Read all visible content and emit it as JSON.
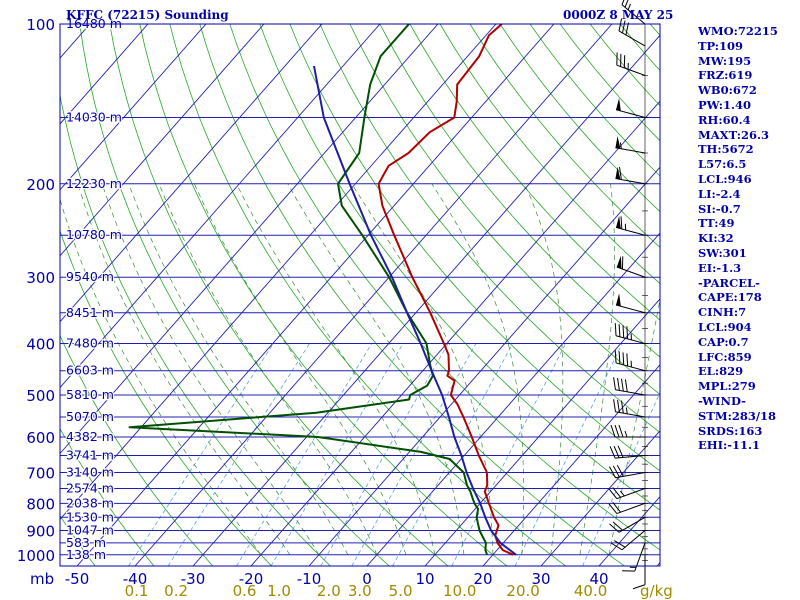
{
  "header": {
    "station": "KFFC (72215) Sounding",
    "datetime": "0000Z  8 MAY 25"
  },
  "indices": [
    "WMO:72215",
    "TP:109",
    "MW:195",
    "FRZ:619",
    "WB0:672",
    "PW:1.40",
    "RH:60.4",
    "MAXT:26.3",
    "TH:5672",
    "L57:6.5",
    "LCL:946",
    "LI:-2.4",
    "SI:-0.7",
    "TT:49",
    "KI:32",
    "SW:301",
    "EI:-1.3",
    "-PARCEL-",
    "CAPE:178",
    "CINH:7",
    "LCL:904",
    "CAP:0.7",
    "LFC:859",
    "EL:829",
    "MPL:279",
    "-WIND-",
    "STM:283/18",
    "SRDS:163",
    "EHI:-11.1"
  ],
  "colors": {
    "axis": "#0000a8",
    "isobar": "#2020b0",
    "isotherm": "#2020b0",
    "dry_adiabat": "#2aa82a",
    "moist_adiabat": "#3a8a3a",
    "mixing_ratio": "#5aa0e8",
    "temperature": "#b00000",
    "dewpoint": "#005000",
    "parcel": "#1e1ea0",
    "mixing_label": "#a08a00",
    "barb": "#000000"
  },
  "chart_data": {
    "type": "line",
    "title": "KFFC (72215) Sounding",
    "y_axis_unit": "mb",
    "x_axis_unit": "g/kg",
    "pressure_ticks": [
      100,
      200,
      300,
      400,
      500,
      600,
      700,
      800,
      900,
      1000
    ],
    "temperature_ticks": [
      -50,
      -40,
      -30,
      -20,
      -10,
      0,
      10,
      20,
      30,
      40
    ],
    "mixing_ratio_labels": [
      "0.1",
      "0.2",
      "0.6",
      "1.0",
      "2.0",
      "3.0",
      "5.0",
      "10.0",
      "20.0",
      "40.0"
    ],
    "height_labels": [
      {
        "p": 100,
        "label": "16480 m"
      },
      {
        "p": 150,
        "label": "14030 m"
      },
      {
        "p": 200,
        "label": "12230 m"
      },
      {
        "p": 250,
        "label": "10780 m"
      },
      {
        "p": 300,
        "label": "9540 m"
      },
      {
        "p": 350,
        "label": "8451 m"
      },
      {
        "p": 400,
        "label": "7480 m"
      },
      {
        "p": 450,
        "label": "6603 m"
      },
      {
        "p": 500,
        "label": "5810 m"
      },
      {
        "p": 550,
        "label": "5070 m"
      },
      {
        "p": 600,
        "label": "4382 m"
      },
      {
        "p": 650,
        "label": "3741 m"
      },
      {
        "p": 700,
        "label": "3140 m"
      },
      {
        "p": 750,
        "label": "2574 m"
      },
      {
        "p": 800,
        "label": "2038 m"
      },
      {
        "p": 850,
        "label": "1530 m"
      },
      {
        "p": 900,
        "label": "1047 m"
      },
      {
        "p": 950,
        "label": "583 m"
      },
      {
        "p": 1000,
        "label": "138 m"
      }
    ],
    "series": [
      {
        "key": "temperature",
        "points": [
          {
            "p": 1000,
            "t": 23.5
          },
          {
            "p": 980,
            "t": 21.0
          },
          {
            "p": 950,
            "t": 19.0
          },
          {
            "p": 920,
            "t": 17.5
          },
          {
            "p": 880,
            "t": 16.5
          },
          {
            "p": 850,
            "t": 14.5
          },
          {
            "p": 800,
            "t": 11.5
          },
          {
            "p": 760,
            "t": 9.0
          },
          {
            "p": 740,
            "t": 8.5
          },
          {
            "p": 700,
            "t": 6.5
          },
          {
            "p": 650,
            "t": 2.5
          },
          {
            "p": 600,
            "t": -1.5
          },
          {
            "p": 550,
            "t": -6.0
          },
          {
            "p": 520,
            "t": -9.0
          },
          {
            "p": 500,
            "t": -11.5
          },
          {
            "p": 470,
            "t": -13.0
          },
          {
            "p": 460,
            "t": -15.0
          },
          {
            "p": 450,
            "t": -15.5
          },
          {
            "p": 420,
            "t": -18.0
          },
          {
            "p": 400,
            "t": -20.5
          },
          {
            "p": 350,
            "t": -27.5
          },
          {
            "p": 300,
            "t": -36.0
          },
          {
            "p": 250,
            "t": -45.5
          },
          {
            "p": 220,
            "t": -52.0
          },
          {
            "p": 200,
            "t": -56.0
          },
          {
            "p": 185,
            "t": -57.0
          },
          {
            "p": 175,
            "t": -55.5
          },
          {
            "p": 160,
            "t": -55.0
          },
          {
            "p": 150,
            "t": -53.0
          },
          {
            "p": 140,
            "t": -55.0
          },
          {
            "p": 130,
            "t": -57.5
          },
          {
            "p": 115,
            "t": -58.0
          },
          {
            "p": 105,
            "t": -59.5
          },
          {
            "p": 100,
            "t": -59.0
          }
        ]
      },
      {
        "key": "dewpoint",
        "points": [
          {
            "p": 1000,
            "t": 19.0
          },
          {
            "p": 980,
            "t": 18.0
          },
          {
            "p": 950,
            "t": 17.0
          },
          {
            "p": 900,
            "t": 14.0
          },
          {
            "p": 850,
            "t": 11.5
          },
          {
            "p": 820,
            "t": 10.5
          },
          {
            "p": 800,
            "t": 9.0
          },
          {
            "p": 760,
            "t": 6.5
          },
          {
            "p": 740,
            "t": 5.0
          },
          {
            "p": 700,
            "t": 2.5
          },
          {
            "p": 660,
            "t": -2.0
          },
          {
            "p": 640,
            "t": -8.0
          },
          {
            "p": 600,
            "t": -28.0
          },
          {
            "p": 575,
            "t": -62.0
          },
          {
            "p": 540,
            "t": -32.0
          },
          {
            "p": 510,
            "t": -18.0
          },
          {
            "p": 500,
            "t": -18.5
          },
          {
            "p": 480,
            "t": -17.0
          },
          {
            "p": 460,
            "t": -17.5
          },
          {
            "p": 440,
            "t": -19.5
          },
          {
            "p": 400,
            "t": -23.5
          },
          {
            "p": 350,
            "t": -31.5
          },
          {
            "p": 300,
            "t": -40.0
          },
          {
            "p": 250,
            "t": -51.0
          },
          {
            "p": 220,
            "t": -59.0
          },
          {
            "p": 200,
            "t": -63.0
          },
          {
            "p": 175,
            "t": -64.0
          },
          {
            "p": 150,
            "t": -68.5
          },
          {
            "p": 130,
            "t": -72.5
          },
          {
            "p": 115,
            "t": -75.0
          },
          {
            "p": 100,
            "t": -75.0
          }
        ]
      },
      {
        "key": "parcel",
        "points": [
          {
            "p": 1000,
            "t": 24.0
          },
          {
            "p": 950,
            "t": 19.5
          },
          {
            "p": 900,
            "t": 16.0
          },
          {
            "p": 850,
            "t": 13.0
          },
          {
            "p": 800,
            "t": 10.0
          },
          {
            "p": 750,
            "t": 6.5
          },
          {
            "p": 700,
            "t": 3.0
          },
          {
            "p": 650,
            "t": -0.5
          },
          {
            "p": 600,
            "t": -4.5
          },
          {
            "p": 550,
            "t": -8.5
          },
          {
            "p": 500,
            "t": -13.0
          },
          {
            "p": 450,
            "t": -18.5
          },
          {
            "p": 400,
            "t": -24.5
          },
          {
            "p": 350,
            "t": -31.5
          },
          {
            "p": 300,
            "t": -39.5
          },
          {
            "p": 250,
            "t": -49.5
          },
          {
            "p": 200,
            "t": -61.0
          },
          {
            "p": 150,
            "t": -75.5
          },
          {
            "p": 120,
            "t": -85.0
          }
        ]
      }
    ],
    "wind_barbs": [
      {
        "p": 1000,
        "dir": 180,
        "spd": 10
      },
      {
        "p": 950,
        "dir": 200,
        "spd": 15
      },
      {
        "p": 900,
        "dir": 230,
        "spd": 20
      },
      {
        "p": 850,
        "dir": 240,
        "spd": 20
      },
      {
        "p": 800,
        "dir": 250,
        "spd": 20
      },
      {
        "p": 750,
        "dir": 250,
        "spd": 25
      },
      {
        "p": 700,
        "dir": 260,
        "spd": 30
      },
      {
        "p": 650,
        "dir": 265,
        "spd": 30
      },
      {
        "p": 600,
        "dir": 270,
        "spd": 35
      },
      {
        "p": 550,
        "dir": 280,
        "spd": 35
      },
      {
        "p": 500,
        "dir": 280,
        "spd": 40
      },
      {
        "p": 450,
        "dir": 285,
        "spd": 45
      },
      {
        "p": 400,
        "dir": 285,
        "spd": 45
      },
      {
        "p": 350,
        "dir": 285,
        "spd": 50
      },
      {
        "p": 300,
        "dir": 290,
        "spd": 60
      },
      {
        "p": 250,
        "dir": 285,
        "spd": 65
      },
      {
        "p": 200,
        "dir": 280,
        "spd": 60
      },
      {
        "p": 175,
        "dir": 280,
        "spd": 55
      },
      {
        "p": 150,
        "dir": 285,
        "spd": 50
      },
      {
        "p": 125,
        "dir": 290,
        "spd": 35
      },
      {
        "p": 110,
        "dir": 300,
        "spd": 30
      },
      {
        "p": 100,
        "dir": 310,
        "spd": 25
      }
    ]
  }
}
